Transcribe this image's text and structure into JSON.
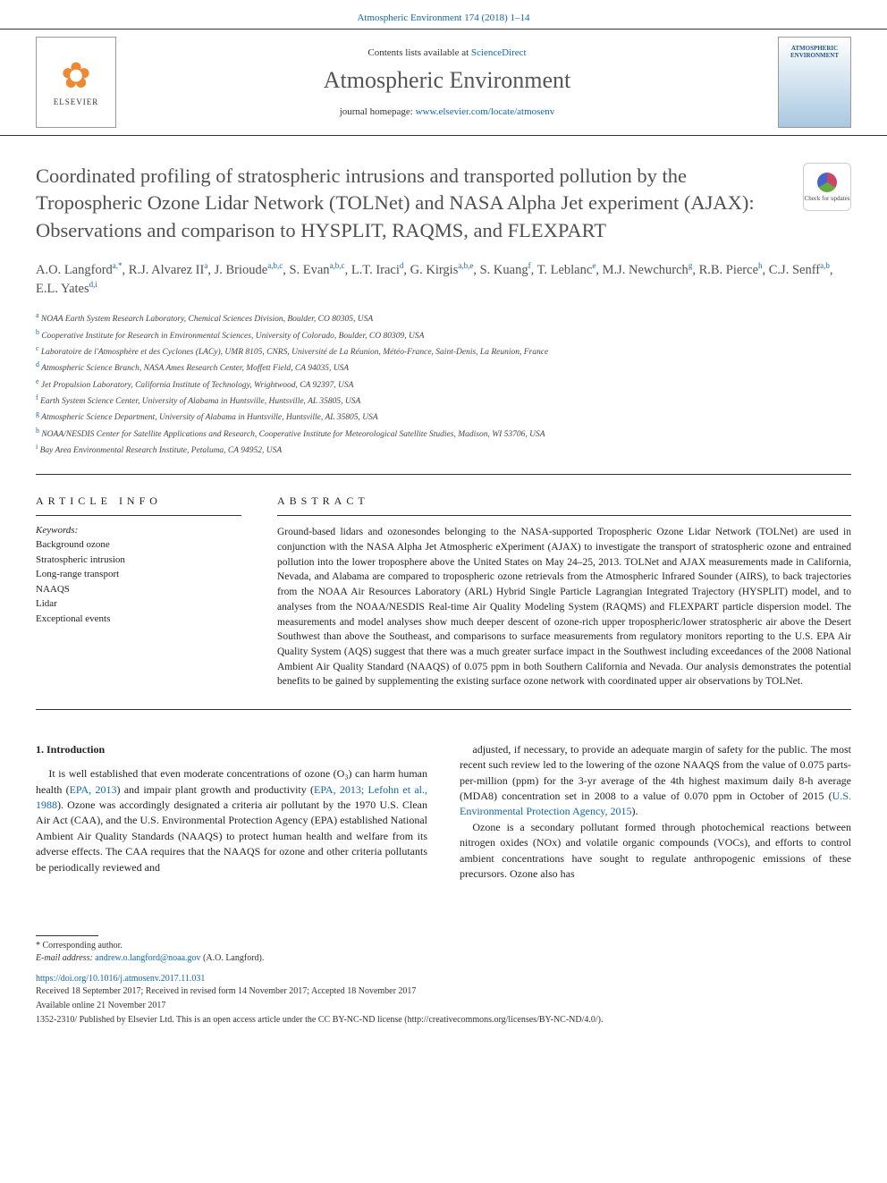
{
  "top_citation": "Atmospheric Environment 174 (2018) 1–14",
  "header": {
    "contents_prefix": "Contents lists available at ",
    "contents_link": "ScienceDirect",
    "journal": "Atmospheric Environment",
    "homepage_prefix": "journal homepage: ",
    "homepage_link": "www.elsevier.com/locate/atmosenv",
    "publisher": "ELSEVIER",
    "cover_label": "ATMOSPHERIC ENVIRONMENT"
  },
  "check_updates_label": "Check for updates",
  "title": "Coordinated profiling of stratospheric intrusions and transported pollution by the Tropospheric Ozone Lidar Network (TOLNet) and NASA Alpha Jet experiment (AJAX): Observations and comparison to HYSPLIT, RAQMS, and FLEXPART",
  "authors_html": "A.O. Langford<sup>a,*</sup>, R.J. Alvarez II<sup>a</sup>, J. Brioude<sup>a,b,c</sup>, S. Evan<sup>a,b,c</sup>, L.T. Iraci<sup>d</sup>, G. Kirgis<sup>a,b,e</sup>, S. Kuang<sup>f</sup>, T. Leblanc<sup>e</sup>, M.J. Newchurch<sup>g</sup>, R.B. Pierce<sup>h</sup>, C.J. Senff<sup>a,b</sup>, E.L. Yates<sup>d,i</sup>",
  "affiliations": [
    {
      "sup": "a",
      "text": "NOAA Earth System Research Laboratory, Chemical Sciences Division, Boulder, CO 80305, USA"
    },
    {
      "sup": "b",
      "text": "Cooperative Institute for Research in Environmental Sciences, University of Colorado, Boulder, CO 80309, USA"
    },
    {
      "sup": "c",
      "text": "Laboratoire de l'Atmosphère et des Cyclones (LACy), UMR 8105, CNRS, Université de La Réunion, Météo-France, Saint-Denis, La Reunion, France"
    },
    {
      "sup": "d",
      "text": "Atmospheric Science Branch, NASA Ames Research Center, Moffett Field, CA 94035, USA"
    },
    {
      "sup": "e",
      "text": "Jet Propulsion Laboratory, California Institute of Technology, Wrightwood, CA 92397, USA"
    },
    {
      "sup": "f",
      "text": "Earth System Science Center, University of Alabama in Huntsville, Huntsville, AL 35805, USA"
    },
    {
      "sup": "g",
      "text": "Atmospheric Science Department, University of Alabama in Huntsville, Huntsville, AL 35805, USA"
    },
    {
      "sup": "h",
      "text": "NOAA/NESDIS Center for Satellite Applications and Research, Cooperative Institute for Meteorological Satellite Studies, Madison, WI 53706, USA"
    },
    {
      "sup": "i",
      "text": "Bay Area Environmental Research Institute, Petaluma, CA 94952, USA"
    }
  ],
  "article_info": {
    "heading": "ARTICLE INFO",
    "keywords_label": "Keywords:",
    "keywords": [
      "Background ozone",
      "Stratospheric intrusion",
      "Long-range transport",
      "NAAQS",
      "Lidar",
      "Exceptional events"
    ]
  },
  "abstract": {
    "heading": "ABSTRACT",
    "text": "Ground-based lidars and ozonesondes belonging to the NASA-supported Tropospheric Ozone Lidar Network (TOLNet) are used in conjunction with the NASA Alpha Jet Atmospheric eXperiment (AJAX) to investigate the transport of stratospheric ozone and entrained pollution into the lower troposphere above the United States on May 24–25, 2013. TOLNet and AJAX measurements made in California, Nevada, and Alabama are compared to tropospheric ozone retrievals from the Atmospheric Infrared Sounder (AIRS), to back trajectories from the NOAA Air Resources Laboratory (ARL) Hybrid Single Particle Lagrangian Integrated Trajectory (HYSPLIT) model, and to analyses from the NOAA/NESDIS Real-time Air Quality Modeling System (RAQMS) and FLEXPART particle dispersion model. The measurements and model analyses show much deeper descent of ozone-rich upper tropospheric/lower stratospheric air above the Desert Southwest than above the Southeast, and comparisons to surface measurements from regulatory monitors reporting to the U.S. EPA Air Quality System (AQS) suggest that there was a much greater surface impact in the Southwest including exceedances of the 2008 National Ambient Air Quality Standard (NAAQS) of 0.075 ppm in both Southern California and Nevada. Our analysis demonstrates the potential benefits to be gained by supplementing the existing surface ozone network with coordinated upper air observations by TOLNet."
  },
  "body": {
    "intro_heading": "1. Introduction",
    "col1_para": "It is well established that even moderate concentrations of ozone (O₃) can harm human health (<a>EPA, 2013</a>) and impair plant growth and productivity (<a>EPA, 2013; Lefohn et al., 1988</a>). Ozone was accordingly designated a criteria air pollutant by the 1970 U.S. Clean Air Act (CAA), and the U.S. Environmental Protection Agency (EPA) established National Ambient Air Quality Standards (NAAQS) to protect human health and welfare from its adverse effects. The CAA requires that the NAAQS for ozone and other criteria pollutants be periodically reviewed and",
    "col2_para1": "adjusted, if necessary, to provide an adequate margin of safety for the public. The most recent such review led to the lowering of the ozone NAAQS from the value of 0.075 parts-per-million (ppm) for the 3-yr average of the 4th highest maximum daily 8-h average (MDA8) concentration set in 2008 to a value of 0.070 ppm in October of 2015 (<a>U.S. Environmental Protection Agency, 2015</a>).",
    "col2_para2": "Ozone is a secondary pollutant formed through photochemical reactions between nitrogen oxides (NOx) and volatile organic compounds (VOCs), and efforts to control ambient concentrations have sought to regulate anthropogenic emissions of these precursors. Ozone also has"
  },
  "footer": {
    "corresponding": "* Corresponding author.",
    "email_label": "E-mail address: ",
    "email": "andrew.o.langford@noaa.gov",
    "email_suffix": " (A.O. Langford).",
    "doi": "https://doi.org/10.1016/j.atmosenv.2017.11.031",
    "received": "Received 18 September 2017; Received in revised form 14 November 2017; Accepted 18 November 2017",
    "available": "Available online 21 November 2017",
    "license": "1352-2310/ Published by Elsevier Ltd. This is an open access article under the CC BY-NC-ND license (http://creativecommons.org/licenses/BY-NC-ND/4.0/)."
  }
}
